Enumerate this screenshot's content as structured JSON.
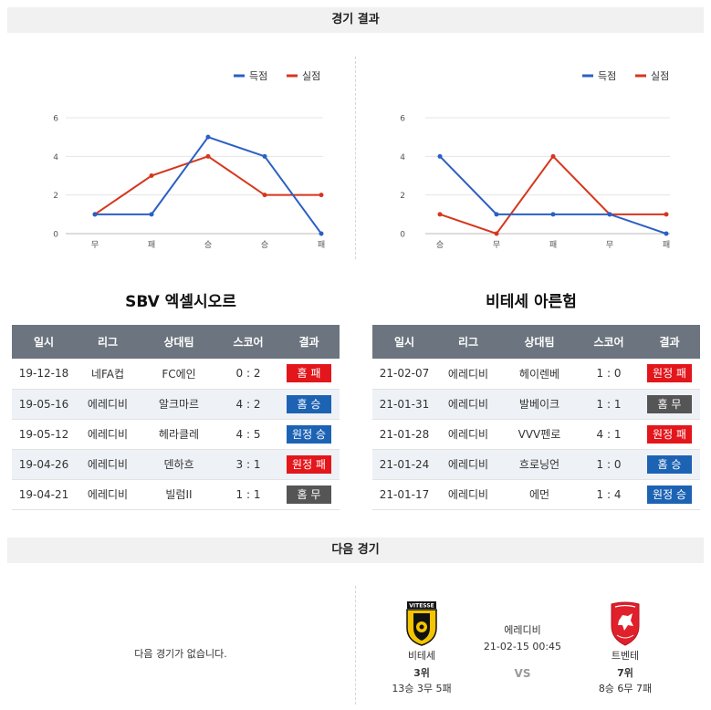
{
  "sections": {
    "results_title": "경기 결과",
    "next_title": "다음 경기"
  },
  "legend": {
    "scored": "득점",
    "conceded": "실점"
  },
  "colors": {
    "scored": "#2b5fc4",
    "conceded": "#d6361d",
    "header_bg": "#6c757f",
    "lose": "#e3161b",
    "win": "#1d63b4",
    "draw": "#555555"
  },
  "chart_data": [
    {
      "type": "line",
      "categories": [
        "무",
        "패",
        "승",
        "승",
        "패"
      ],
      "series": [
        {
          "name": "득점",
          "values": [
            1,
            1,
            5,
            4,
            0
          ]
        },
        {
          "name": "실점",
          "values": [
            1,
            3,
            4,
            2,
            2
          ]
        }
      ],
      "yticks": [
        0,
        2,
        4,
        6
      ],
      "ylim": [
        0,
        6
      ],
      "grid": true,
      "legend_position": "top-right"
    },
    {
      "type": "line",
      "categories": [
        "승",
        "무",
        "패",
        "무",
        "패"
      ],
      "series": [
        {
          "name": "득점",
          "values": [
            4,
            1,
            1,
            1,
            0
          ]
        },
        {
          "name": "실점",
          "values": [
            1,
            0,
            4,
            1,
            1
          ]
        }
      ],
      "yticks": [
        0,
        2,
        4,
        6
      ],
      "ylim": [
        0,
        6
      ],
      "grid": true,
      "legend_position": "top-right"
    }
  ],
  "table_headers": [
    "일시",
    "리그",
    "상대팀",
    "스코어",
    "결과"
  ],
  "left_team": {
    "name": "SBV 엑셀시오르",
    "rows": [
      {
        "date": "19-12-18",
        "league": "네FA컵",
        "opponent": "FC에인",
        "score": "0 : 2",
        "result": "홈 패",
        "type": "lose"
      },
      {
        "date": "19-05-16",
        "league": "에레디비",
        "opponent": "알크마르",
        "score": "4 : 2",
        "result": "홈 승",
        "type": "win"
      },
      {
        "date": "19-05-12",
        "league": "에레디비",
        "opponent": "헤라클레",
        "score": "4 : 5",
        "result": "원정 승",
        "type": "win"
      },
      {
        "date": "19-04-26",
        "league": "에레디비",
        "opponent": "덴하흐",
        "score": "3 : 1",
        "result": "원정 패",
        "type": "lose"
      },
      {
        "date": "19-04-21",
        "league": "에레디비",
        "opponent": "빌럼II",
        "score": "1 : 1",
        "result": "홈 무",
        "type": "draw"
      }
    ]
  },
  "right_team": {
    "name": "비테세 아른험",
    "rows": [
      {
        "date": "21-02-07",
        "league": "에레디비",
        "opponent": "헤이렌베",
        "score": "1 : 0",
        "result": "원정 패",
        "type": "lose"
      },
      {
        "date": "21-01-31",
        "league": "에레디비",
        "opponent": "발베이크",
        "score": "1 : 1",
        "result": "홈 무",
        "type": "draw"
      },
      {
        "date": "21-01-28",
        "league": "에레디비",
        "opponent": "VVV펜로",
        "score": "4 : 1",
        "result": "원정 패",
        "type": "lose"
      },
      {
        "date": "21-01-24",
        "league": "에레디비",
        "opponent": "흐로닝언",
        "score": "1 : 0",
        "result": "홈 승",
        "type": "win"
      },
      {
        "date": "21-01-17",
        "league": "에레디비",
        "opponent": "에먼",
        "score": "1 : 4",
        "result": "원정 승",
        "type": "win"
      }
    ]
  },
  "next_match": {
    "none_text": "다음 경기가 없습니다.",
    "league": "에레디비",
    "datetime": "21-02-15 00:45",
    "vs": "VS",
    "home": {
      "name": "비테세",
      "rank": "3위",
      "record": "13승 3무 5패",
      "crest_text": "VITESSE",
      "crest_icon": "vitesse-crest-icon"
    },
    "away": {
      "name": "트벤테",
      "rank": "7위",
      "record": "8승 6무 7패",
      "crest_icon": "twente-crest-icon"
    }
  }
}
